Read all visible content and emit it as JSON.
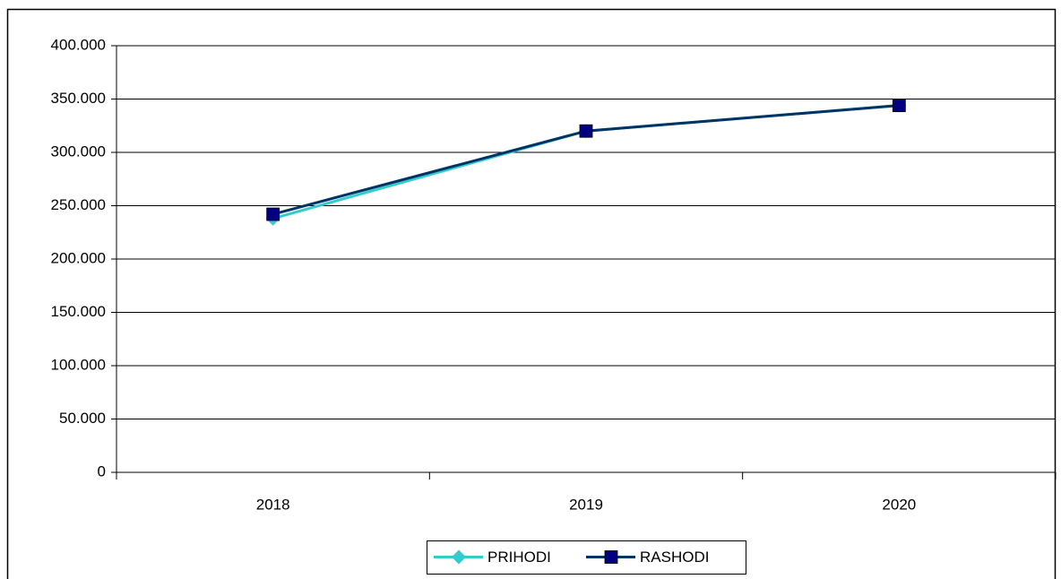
{
  "chart_data": {
    "type": "line",
    "categories": [
      "2018",
      "2019",
      "2020"
    ],
    "series": [
      {
        "name": "PRIHODI",
        "color": "#33cccc",
        "marker": "diamond",
        "values": [
          238000,
          320000,
          344000
        ]
      },
      {
        "name": "RASHODI",
        "color": "#003366",
        "marker_color": "#000080",
        "marker": "square",
        "values": [
          242000,
          320000,
          344000
        ]
      }
    ],
    "ylim": [
      0,
      400000
    ],
    "yticks": [
      0,
      {
        "value": 50000,
        "label": "50.000"
      },
      {
        "value": 100000,
        "label": "100.000"
      },
      {
        "value": 150000,
        "label": "150.000"
      },
      {
        "value": 200000,
        "label": "200.000"
      },
      {
        "value": 250000,
        "label": "250.000"
      },
      {
        "value": 300000,
        "label": "300.000"
      },
      {
        "value": 350000,
        "label": "350.000"
      },
      {
        "value": 400000,
        "label": "400.000"
      }
    ],
    "grid": true,
    "legend": "bottom"
  }
}
